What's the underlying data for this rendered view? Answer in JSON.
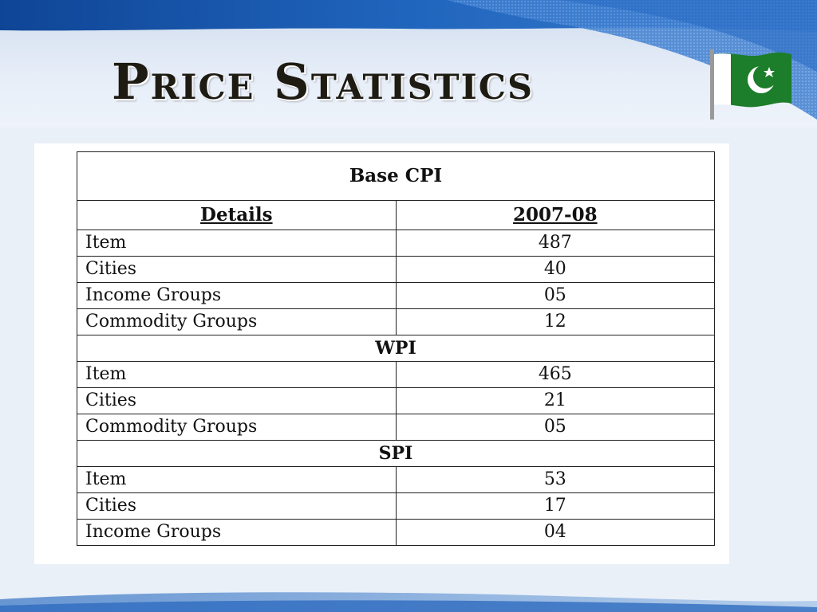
{
  "slide": {
    "title": "Price Statistics"
  },
  "colors": {
    "band_dark": "#1b57a8",
    "band_light": "#4a86d0",
    "flag_green": "#1c7d2a",
    "flag_white": "#ffffff"
  },
  "flag": {
    "icon": "pakistan-flag-icon"
  },
  "table": {
    "caption": "Base CPI",
    "headers": [
      "Details",
      "2007-08"
    ],
    "cpi_rows": [
      {
        "label": "Item",
        "value": "487"
      },
      {
        "label": "Cities",
        "value": "40"
      },
      {
        "label": "Income Groups",
        "value": "05"
      },
      {
        "label": "Commodity Groups",
        "value": "12"
      }
    ],
    "wpi_title": "WPI",
    "wpi_rows": [
      {
        "label": "Item",
        "value": "465"
      },
      {
        "label": "Cities",
        "value": "21"
      },
      {
        "label": "Commodity Groups",
        "value": "05"
      }
    ],
    "spi_title": "SPI",
    "spi_rows": [
      {
        "label": "Item",
        "value": "53"
      },
      {
        "label": "Cities",
        "value": "17"
      },
      {
        "label": "Income Groups",
        "value": "04"
      }
    ]
  }
}
